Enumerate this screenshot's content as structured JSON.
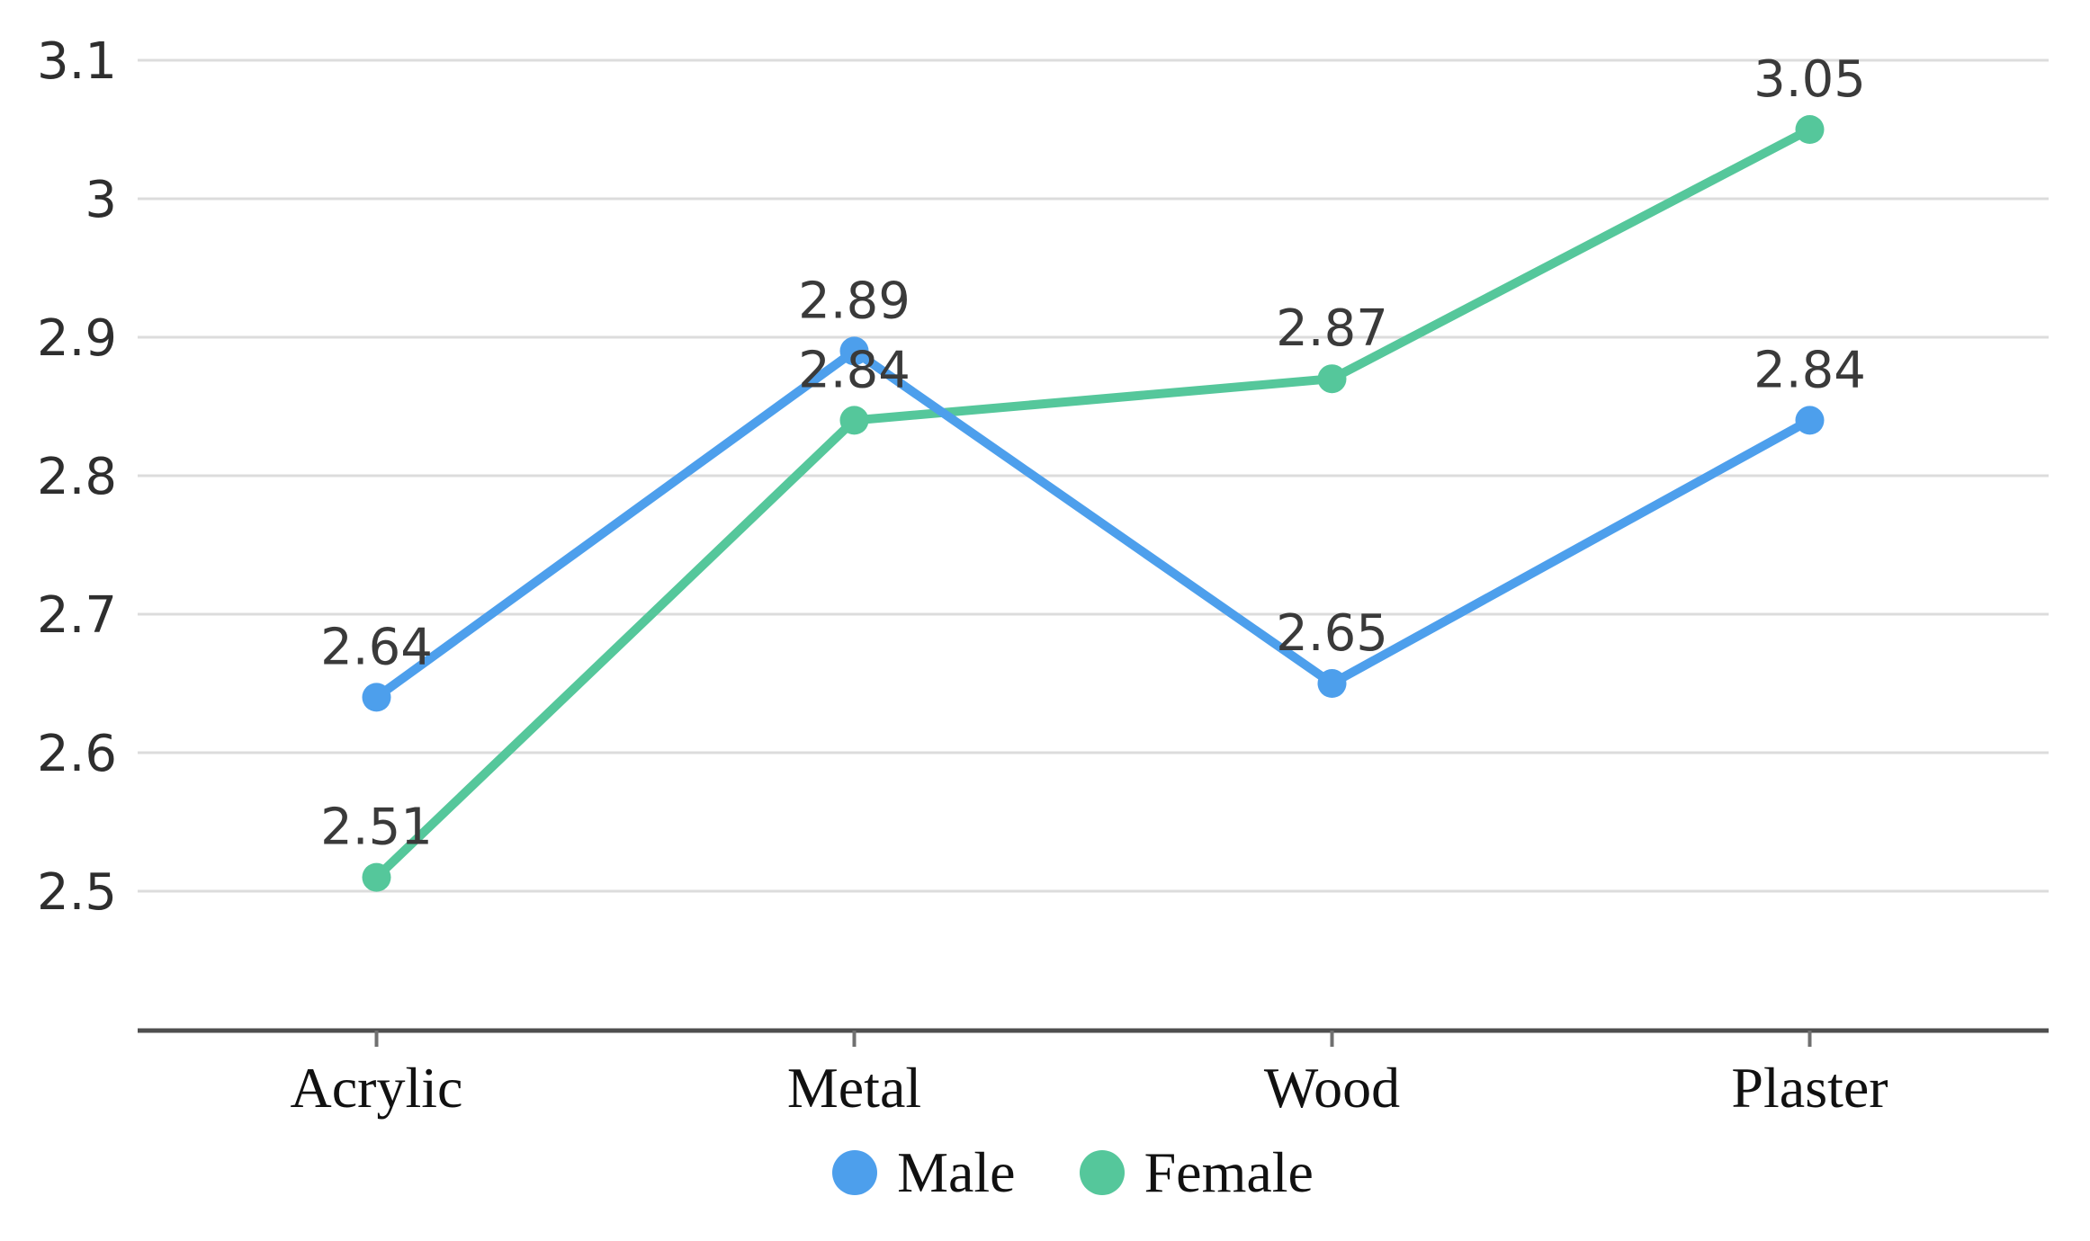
{
  "chart_data": {
    "type": "line",
    "title": "",
    "xlabel": "",
    "ylabel": "",
    "categories": [
      "Acrylic",
      "Metal",
      "Wood",
      "Plaster"
    ],
    "series": [
      {
        "name": "Male",
        "color": "#4D9FEC",
        "values": [
          2.64,
          2.89,
          2.65,
          2.84
        ],
        "point_labels": [
          "2.64",
          "2.89",
          "2.65",
          "2.84"
        ]
      },
      {
        "name": "Female",
        "color": "#55C79B",
        "values": [
          2.51,
          2.84,
          2.87,
          3.05
        ],
        "point_labels": [
          "2.51",
          "2.84",
          "2.87",
          "3.05"
        ]
      }
    ],
    "ylim": [
      2.5,
      3.1
    ],
    "yticks": [
      {
        "value": 2.5,
        "label": "2.5"
      },
      {
        "value": 2.6,
        "label": "2.6"
      },
      {
        "value": 2.7,
        "label": "2.7"
      },
      {
        "value": 2.8,
        "label": "2.8"
      },
      {
        "value": 2.9,
        "label": "2.9"
      },
      {
        "value": 3.0,
        "label": "3"
      },
      {
        "value": 3.1,
        "label": "3.1"
      }
    ],
    "grid": true,
    "legend_position": "bottom",
    "marker": "circle"
  },
  "colors": {
    "background": "#FFFFFF",
    "gridline": "#DCDCDC",
    "axis_line": "#4F4F4F",
    "axis_tick": "#707070",
    "tick_label": "#2E2E2E",
    "data_label": "#3A3A3A",
    "category_label": "#111111"
  }
}
